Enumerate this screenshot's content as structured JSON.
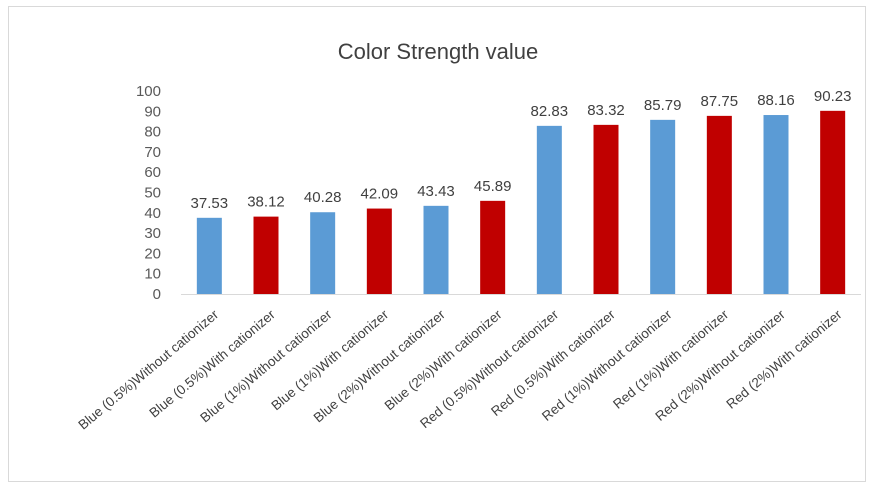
{
  "chart_data": {
    "type": "bar",
    "title": "Color Strength value",
    "xlabel": "",
    "ylabel": "",
    "ylim": [
      0,
      100
    ],
    "yticks": [
      0,
      10,
      20,
      30,
      40,
      50,
      60,
      70,
      80,
      90,
      100
    ],
    "grid": false,
    "legend": "none",
    "categories": [
      "Blue (0.5%)Without cationizer",
      "Blue (0.5%)With cationizer",
      "Blue (1%)Without cationizer",
      "Blue (1%)With cationizer",
      "Blue (2%)Without cationizer",
      "Blue (2%)With cationizer",
      "Red (0.5%)Without cationizer",
      "Red (0.5%)With cationizer",
      "Red (1%)Without cationizer",
      "Red (1%)With cationizer",
      "Red (2%)Without cationizer",
      "Red (2%)With cationizer"
    ],
    "values": [
      37.53,
      38.12,
      40.28,
      42.09,
      43.43,
      45.89,
      82.83,
      83.32,
      85.79,
      87.75,
      88.16,
      90.23
    ],
    "data_labels": [
      "37.53",
      "38.12",
      "40.28",
      "42.09",
      "43.43",
      "45.89",
      "82.83",
      "83.32",
      "85.79",
      "87.75",
      "88.16",
      "90.23"
    ],
    "bar_colors": [
      "#5b9bd5",
      "#c00000",
      "#5b9bd5",
      "#c00000",
      "#5b9bd5",
      "#c00000",
      "#5b9bd5",
      "#c00000",
      "#5b9bd5",
      "#c00000",
      "#5b9bd5",
      "#c00000"
    ]
  }
}
